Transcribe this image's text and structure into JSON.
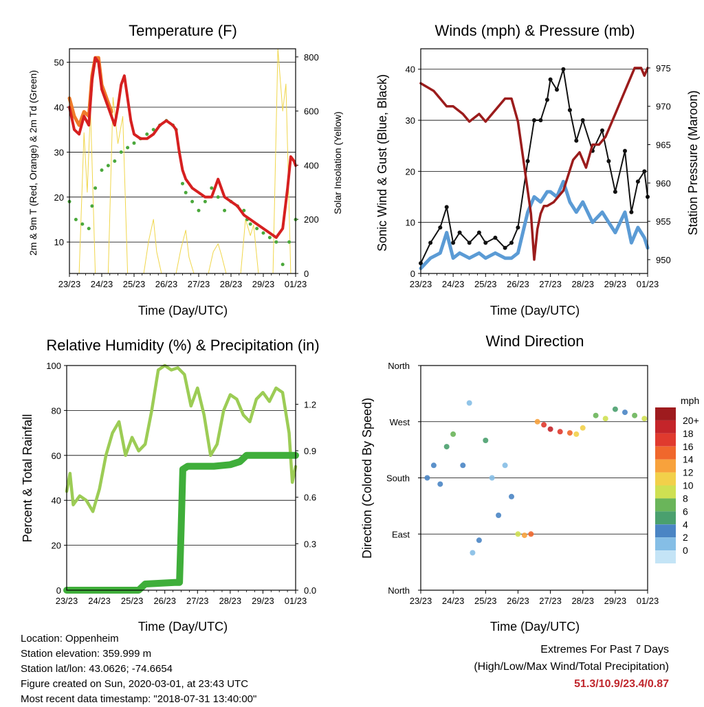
{
  "footer": {
    "location": "Location: Oppenheim",
    "elevation": "Station elevation: 359.999 m",
    "latlon": "Station lat/lon: 43.0626; -74.6654",
    "created": "Figure created on Sun, 2020-03-01, at 23:43 UTC",
    "recent": "Most recent data timestamp: \"2018-07-31 13:40:00\""
  },
  "extremes": {
    "title": "Extremes For Past 7 Days",
    "subtitle": "(High/Low/Max Wind/Total Precipitation)",
    "values": "51.3/10.9/23.4/0.87"
  },
  "chart_data": [
    {
      "type": "line",
      "title": "Temperature (F)",
      "xlabel": "Time (Day/UTC)",
      "ylabel": "2m & 9m T (Red, Orange) & 2m Td (Green)",
      "ylabel_right": "Solar Insolation (Yellow)",
      "x_ticks": [
        "23/23",
        "24/23",
        "25/23",
        "26/23",
        "27/23",
        "28/23",
        "29/23",
        "01/23"
      ],
      "xlim": [
        0,
        7
      ],
      "ylim": [
        3,
        53
      ],
      "y_ticks": [
        10,
        20,
        30,
        40,
        50
      ],
      "ylim_right": [
        0,
        830
      ],
      "y_ticks_right": [
        0,
        200,
        400,
        600,
        800
      ],
      "grid": true,
      "series": [
        {
          "name": "2m T",
          "color": "#d62020",
          "axis": "left",
          "x": [
            0,
            0.15,
            0.3,
            0.45,
            0.6,
            0.7,
            0.8,
            0.9,
            1.0,
            1.1,
            1.2,
            1.3,
            1.4,
            1.5,
            1.6,
            1.7,
            1.8,
            1.9,
            2.0,
            2.2,
            2.4,
            2.6,
            2.8,
            3.0,
            3.2,
            3.3,
            3.4,
            3.5,
            3.6,
            3.8,
            4.0,
            4.2,
            4.4,
            4.6,
            4.8,
            5.0,
            5.2,
            5.4,
            5.6,
            5.8,
            6.0,
            6.2,
            6.4,
            6.6,
            6.75,
            6.85,
            6.95,
            7.0
          ],
          "y": [
            40,
            35,
            34,
            38,
            36,
            46,
            51,
            50,
            44,
            42,
            40,
            38,
            36,
            40,
            45,
            47,
            42,
            37,
            34,
            33,
            33,
            34,
            36,
            37,
            36,
            35,
            30,
            26,
            24,
            22,
            21,
            20,
            20,
            24,
            20,
            19,
            18,
            16,
            15,
            14,
            13,
            12,
            11,
            13,
            22,
            29,
            28,
            27
          ]
        },
        {
          "name": "9m T",
          "color": "#f07a2a",
          "axis": "left",
          "x": [
            0,
            0.15,
            0.3,
            0.45,
            0.6,
            0.7,
            0.8,
            0.9,
            1.0,
            1.1,
            1.2,
            1.3
          ],
          "y": [
            42,
            38,
            36,
            39,
            38,
            47,
            51,
            51,
            45,
            43,
            41,
            39
          ]
        },
        {
          "name": "2m Td",
          "color": "#4aa83b",
          "axis": "left",
          "style": "dots",
          "x": [
            0,
            0.2,
            0.4,
            0.6,
            0.7,
            0.8,
            1.0,
            1.2,
            1.4,
            1.6,
            1.8,
            2.0,
            2.2,
            2.4,
            2.6,
            2.8,
            3.0,
            3.2,
            3.3,
            3.4,
            3.5,
            3.6,
            3.8,
            4.0,
            4.2,
            4.4,
            4.6,
            4.8,
            5.0,
            5.2,
            5.4,
            5.5,
            5.6,
            5.8,
            6.0,
            6.2,
            6.4,
            6.6,
            6.8,
            7.0
          ],
          "y": [
            19,
            15,
            14,
            13,
            18,
            22,
            26,
            27,
            28,
            30,
            31,
            32,
            33,
            34,
            35,
            36,
            37,
            36,
            35,
            30,
            23,
            21,
            19,
            17,
            19,
            22,
            20,
            17,
            19,
            18,
            17,
            15,
            14,
            13,
            12,
            11,
            10,
            5,
            10,
            15
          ]
        },
        {
          "name": "Solar Insolation",
          "color": "#f0d64a",
          "axis": "right",
          "x": [
            0.3,
            0.45,
            0.55,
            0.65,
            0.8,
            1.2,
            1.35,
            1.5,
            1.65,
            1.8,
            2.3,
            2.45,
            2.6,
            2.7,
            2.85,
            3.3,
            3.45,
            3.6,
            3.7,
            3.85,
            4.3,
            4.45,
            4.6,
            4.7,
            4.85,
            5.3,
            5.45,
            5.6,
            5.7,
            5.85,
            6.3,
            6.45,
            6.6,
            6.7,
            6.85,
            7.0
          ],
          "y": [
            0,
            520,
            300,
            610,
            0,
            0,
            650,
            480,
            580,
            0,
            0,
            120,
            200,
            80,
            0,
            0,
            90,
            160,
            60,
            0,
            0,
            80,
            110,
            70,
            0,
            0,
            200,
            140,
            180,
            0,
            0,
            830,
            600,
            700,
            0,
            0
          ]
        }
      ]
    },
    {
      "type": "line",
      "title": "Winds (mph) & Pressure (mb)",
      "xlabel": "Time (Day/UTC)",
      "ylabel": "Sonic Wind & Gust (Blue, Black)",
      "ylabel_right": "Station Pressure (Maroon)",
      "x_ticks": [
        "23/23",
        "24/23",
        "25/23",
        "26/23",
        "27/23",
        "28/23",
        "29/23",
        "01/23"
      ],
      "xlim": [
        0,
        7
      ],
      "ylim": [
        0,
        44
      ],
      "y_ticks": [
        0,
        10,
        20,
        30,
        40
      ],
      "ylim_right": [
        948.2,
        977.5
      ],
      "y_ticks_right": [
        950,
        955,
        960,
        965,
        970,
        975
      ],
      "grid": true,
      "series": [
        {
          "name": "Sonic Wind",
          "color": "#5b9bd5",
          "axis": "left",
          "x": [
            0,
            0.3,
            0.6,
            0.8,
            1.0,
            1.2,
            1.5,
            1.8,
            2.0,
            2.3,
            2.6,
            2.8,
            3.0,
            3.3,
            3.5,
            3.7,
            3.9,
            4.0,
            4.2,
            4.4,
            4.6,
            4.8,
            5.0,
            5.3,
            5.6,
            5.8,
            6.0,
            6.3,
            6.5,
            6.7,
            6.9,
            7.0
          ],
          "y": [
            1,
            3,
            4,
            8,
            3,
            4,
            3,
            4,
            3,
            4,
            3,
            3,
            4,
            12,
            15,
            14,
            16,
            16,
            15,
            18,
            14,
            12,
            14,
            10,
            12,
            10,
            8,
            12,
            6,
            9,
            7,
            5
          ]
        },
        {
          "name": "Gust",
          "color": "#111111",
          "axis": "left",
          "style": "dots",
          "x": [
            0,
            0.3,
            0.6,
            0.8,
            1.0,
            1.2,
            1.5,
            1.8,
            2.0,
            2.3,
            2.6,
            2.8,
            3.0,
            3.3,
            3.5,
            3.7,
            3.9,
            4.0,
            4.2,
            4.4,
            4.6,
            4.8,
            5.0,
            5.3,
            5.6,
            5.8,
            6.0,
            6.3,
            6.5,
            6.7,
            6.9,
            7.0
          ],
          "y": [
            2,
            6,
            9,
            13,
            6,
            8,
            6,
            8,
            6,
            7,
            5,
            6,
            9,
            22,
            30,
            30,
            34,
            38,
            36,
            40,
            32,
            26,
            30,
            24,
            28,
            22,
            16,
            24,
            12,
            18,
            20,
            15
          ]
        },
        {
          "name": "Station Pressure",
          "color": "#9b1c1c",
          "axis": "right",
          "x": [
            0,
            0.2,
            0.4,
            0.6,
            0.8,
            1.0,
            1.3,
            1.5,
            1.8,
            2.0,
            2.2,
            2.4,
            2.6,
            2.8,
            3.0,
            3.2,
            3.4,
            3.5,
            3.6,
            3.7,
            3.8,
            3.9,
            4.1,
            4.4,
            4.7,
            4.9,
            5.1,
            5.3,
            5.5,
            5.7,
            6.0,
            6.2,
            6.4,
            6.6,
            6.8,
            6.9,
            7.0
          ],
          "y": [
            973,
            972.5,
            972,
            971,
            970,
            970,
            969,
            968,
            969,
            968,
            969,
            970,
            971,
            971,
            968,
            962,
            956,
            950,
            954,
            956,
            957,
            957,
            957.5,
            959,
            963,
            964,
            962,
            965,
            965,
            966,
            969,
            971,
            973,
            975,
            975,
            974,
            975
          ]
        }
      ]
    },
    {
      "type": "line",
      "title": "Relative Humidity (%) & Precipitation (in)",
      "xlabel": "Time (Day/UTC)",
      "ylabel": "Percent & Total Rainfall",
      "x_ticks": [
        "23/23",
        "24/23",
        "25/23",
        "26/23",
        "27/23",
        "28/23",
        "29/23",
        "01/23"
      ],
      "xlim": [
        0,
        7
      ],
      "ylim": [
        0,
        100
      ],
      "y_ticks": [
        0,
        20,
        40,
        60,
        80,
        100
      ],
      "ylim_right": [
        0,
        1.45
      ],
      "y_ticks_right": [
        "0.0",
        "0.3",
        "0.6",
        "0.9",
        "1.2"
      ],
      "grid": true,
      "series": [
        {
          "name": "Relative Humidity",
          "color": "#9ccc55",
          "axis": "left",
          "x": [
            0,
            0.1,
            0.2,
            0.4,
            0.6,
            0.8,
            1.0,
            1.2,
            1.4,
            1.6,
            1.8,
            2.0,
            2.2,
            2.4,
            2.6,
            2.8,
            3.0,
            3.2,
            3.4,
            3.6,
            3.8,
            4.0,
            4.2,
            4.4,
            4.6,
            4.8,
            5.0,
            5.2,
            5.4,
            5.6,
            5.8,
            6.0,
            6.2,
            6.4,
            6.6,
            6.8,
            6.9,
            7.0
          ],
          "y": [
            44,
            52,
            38,
            42,
            40,
            35,
            45,
            60,
            70,
            75,
            60,
            68,
            62,
            65,
            80,
            98,
            100,
            98,
            99,
            96,
            82,
            90,
            78,
            60,
            65,
            80,
            87,
            85,
            78,
            75,
            85,
            88,
            84,
            90,
            88,
            70,
            48,
            55
          ]
        },
        {
          "name": "Total Precipitation",
          "color": "#3fae3a",
          "axis": "right",
          "x": [
            0,
            2.2,
            2.4,
            3.3,
            3.45,
            3.5,
            3.55,
            3.7,
            4.5,
            5.0,
            5.3,
            5.5,
            6.0,
            7.0
          ],
          "y": [
            0,
            0,
            0.04,
            0.05,
            0.05,
            0.4,
            0.78,
            0.8,
            0.8,
            0.81,
            0.83,
            0.87,
            0.87,
            0.87
          ]
        }
      ]
    },
    {
      "type": "scatter",
      "title": "Wind Direction",
      "xlabel": "Time (Day/UTC)",
      "ylabel": "Direction (Colored By Speed)",
      "x_ticks": [
        "23/23",
        "24/23",
        "25/23",
        "26/23",
        "27/23",
        "28/23",
        "29/23",
        "01/23"
      ],
      "xlim": [
        0,
        7
      ],
      "ylim": [
        0,
        360
      ],
      "y_ticks": [
        "North",
        "East",
        "South",
        "West",
        "North"
      ],
      "grid": true,
      "colorbar": {
        "title": "mph",
        "labels": [
          "20+",
          "18",
          "16",
          "14",
          "12",
          "10",
          "8",
          "6",
          "4",
          "2",
          "0"
        ],
        "colors": [
          "#9e1b1e",
          "#c4252a",
          "#e03a2e",
          "#f0672c",
          "#f8a23c",
          "#f2d04a",
          "#cfe052",
          "#6ab55a",
          "#4aa06e",
          "#4a85c4",
          "#85bee6",
          "#c4e4f6"
        ]
      },
      "points": [
        {
          "x": 0.2,
          "y": 180,
          "s": 3
        },
        {
          "x": 0.4,
          "y": 200,
          "s": 4
        },
        {
          "x": 0.6,
          "y": 170,
          "s": 3
        },
        {
          "x": 0.8,
          "y": 230,
          "s": 6
        },
        {
          "x": 1.0,
          "y": 250,
          "s": 8
        },
        {
          "x": 1.3,
          "y": 200,
          "s": 3
        },
        {
          "x": 1.5,
          "y": 300,
          "s": 2
        },
        {
          "x": 1.6,
          "y": 60,
          "s": 2
        },
        {
          "x": 1.8,
          "y": 80,
          "s": 3
        },
        {
          "x": 2.0,
          "y": 240,
          "s": 6
        },
        {
          "x": 2.2,
          "y": 180,
          "s": 2
        },
        {
          "x": 2.4,
          "y": 120,
          "s": 3
        },
        {
          "x": 2.6,
          "y": 200,
          "s": 2
        },
        {
          "x": 2.8,
          "y": 150,
          "s": 3
        },
        {
          "x": 3.0,
          "y": 90,
          "s": 10
        },
        {
          "x": 3.2,
          "y": 88,
          "s": 14
        },
        {
          "x": 3.4,
          "y": 90,
          "s": 16
        },
        {
          "x": 3.6,
          "y": 270,
          "s": 14
        },
        {
          "x": 3.8,
          "y": 265,
          "s": 18
        },
        {
          "x": 4.0,
          "y": 258,
          "s": 20
        },
        {
          "x": 4.3,
          "y": 254,
          "s": 18
        },
        {
          "x": 4.6,
          "y": 252,
          "s": 16
        },
        {
          "x": 4.8,
          "y": 250,
          "s": 12
        },
        {
          "x": 5.0,
          "y": 260,
          "s": 12
        },
        {
          "x": 5.4,
          "y": 280,
          "s": 8
        },
        {
          "x": 5.7,
          "y": 275,
          "s": 10
        },
        {
          "x": 6.0,
          "y": 290,
          "s": 6
        },
        {
          "x": 6.3,
          "y": 285,
          "s": 4
        },
        {
          "x": 6.6,
          "y": 280,
          "s": 8
        },
        {
          "x": 6.9,
          "y": 275,
          "s": 10
        }
      ]
    }
  ]
}
